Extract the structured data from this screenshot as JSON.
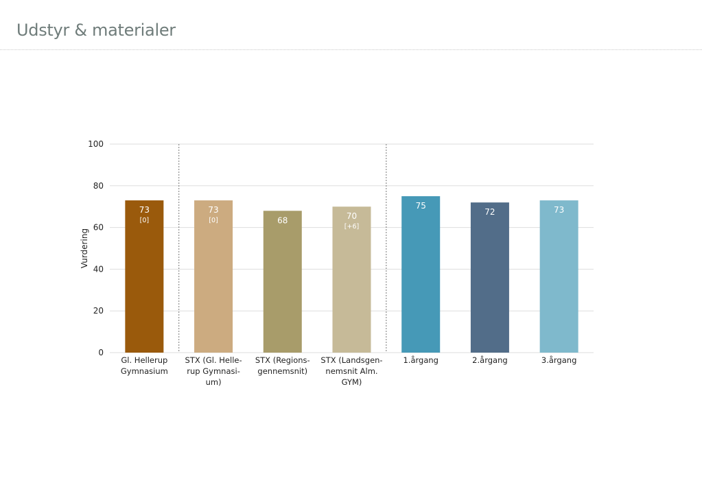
{
  "page": {
    "title": "Udstyr & materialer"
  },
  "chart_data": {
    "type": "bar",
    "ylabel": "Vurdering",
    "ylim": [
      0,
      100
    ],
    "yticks": [
      0,
      20,
      40,
      60,
      80,
      100
    ],
    "grid": true,
    "group_separators_after_index": [
      0,
      3
    ],
    "categories": [
      [
        "Gl. Hellerup",
        "Gymnasium"
      ],
      [
        "STX (Gl. Helle-",
        "rup Gymnasi-",
        "um)"
      ],
      [
        "STX (Regions-",
        "gennemsnit)"
      ],
      [
        "STX (Landsgen-",
        "nemsnit Alm.",
        "GYM)"
      ],
      [
        "1.årgang"
      ],
      [
        "2.årgang"
      ],
      [
        "3.årgang"
      ]
    ],
    "values": [
      73,
      73,
      68,
      70,
      75,
      72,
      73
    ],
    "value_labels": [
      "73",
      "73",
      "68",
      "70",
      "75",
      "72",
      "73"
    ],
    "change_labels": [
      "[0]",
      "[0]",
      "",
      "[+6]",
      "",
      "",
      ""
    ],
    "colors": [
      "#9a5a0c",
      "#ccab80",
      "#a89c6a",
      "#c6ba98",
      "#4699b7",
      "#526d89",
      "#7fb9cc"
    ]
  }
}
